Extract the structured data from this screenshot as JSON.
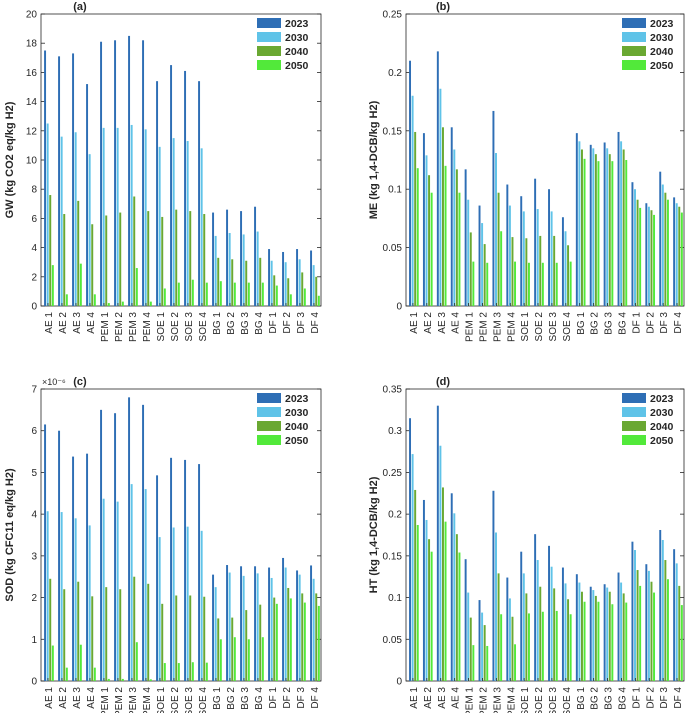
{
  "chart_data": [
    {
      "panel_label": "(a)",
      "type": "bar",
      "ylabel": "GW (kg CO2 eq/kg H2)",
      "xlabel": "",
      "ylim": [
        0,
        20
      ],
      "yticks": [
        "0",
        "2",
        "4",
        "6",
        "8",
        "10",
        "12",
        "14",
        "16",
        "18",
        "20"
      ],
      "exponent_label": "",
      "categories": [
        "AE 1",
        "AE 2",
        "AE 3",
        "AE 4",
        "PEM 1",
        "PEM 2",
        "PEM 3",
        "PEM 4",
        "SOE 1",
        "SOE 2",
        "SOE 3",
        "SOE 4",
        "BG 1",
        "BG 2",
        "BG 3",
        "BG 4",
        "DF 1",
        "DF 2",
        "DF 3",
        "DF 4"
      ],
      "series": [
        {
          "name": "2023",
          "color": "#2e6eb5",
          "values": [
            17.5,
            17.1,
            17.3,
            15.2,
            18.1,
            18.2,
            18.5,
            18.2,
            15.4,
            16.5,
            16.1,
            15.4,
            6.4,
            6.6,
            6.5,
            6.8,
            3.9,
            3.7,
            3.9,
            3.8
          ]
        },
        {
          "name": "2030",
          "color": "#5fc3e8",
          "values": [
            12.5,
            11.6,
            11.9,
            10.4,
            12.2,
            12.2,
            12.4,
            12.1,
            10.9,
            11.5,
            11.3,
            10.8,
            4.8,
            5.0,
            4.9,
            5.1,
            3.1,
            3.0,
            3.2,
            2.8
          ]
        },
        {
          "name": "2040",
          "color": "#6aa832",
          "values": [
            7.6,
            6.3,
            7.2,
            5.6,
            6.2,
            6.4,
            7.5,
            6.5,
            6.1,
            6.6,
            6.5,
            6.3,
            3.3,
            3.2,
            3.1,
            3.3,
            2.1,
            1.9,
            2.3,
            2.0
          ]
        },
        {
          "name": "2050",
          "color": "#52e93a",
          "values": [
            2.8,
            0.8,
            2.9,
            0.8,
            0.2,
            0.3,
            2.6,
            0.3,
            1.2,
            1.6,
            1.8,
            1.6,
            1.7,
            1.6,
            1.6,
            1.6,
            1.4,
            0.8,
            1.2,
            0.7
          ]
        }
      ]
    },
    {
      "panel_label": "(b)",
      "type": "bar",
      "ylabel": "ME (kg 1,4-DCB/kg H2)",
      "xlabel": "",
      "ylim": [
        0,
        0.25
      ],
      "yticks": [
        "0",
        "0.05",
        "0.1",
        "0.15",
        "0.2",
        "0.25"
      ],
      "exponent_label": "",
      "categories": [
        "AE 1",
        "AE 2",
        "AE 3",
        "AE 4",
        "PEM 1",
        "PEM 2",
        "PEM 3",
        "PEM 4",
        "SOE 1",
        "SOE 2",
        "SOE 3",
        "SOE 4",
        "BG 1",
        "BG 2",
        "BG 3",
        "BG 4",
        "DF 1",
        "DF 2",
        "DF 3",
        "DF 4"
      ],
      "series": [
        {
          "name": "2023",
          "color": "#2e6eb5",
          "values": [
            0.21,
            0.148,
            0.218,
            0.153,
            0.117,
            0.086,
            0.167,
            0.104,
            0.094,
            0.109,
            0.1,
            0.076,
            0.148,
            0.138,
            0.14,
            0.149,
            0.106,
            0.088,
            0.115,
            0.093
          ]
        },
        {
          "name": "2030",
          "color": "#5fc3e8",
          "values": [
            0.18,
            0.129,
            0.186,
            0.134,
            0.091,
            0.071,
            0.131,
            0.086,
            0.081,
            0.083,
            0.081,
            0.064,
            0.141,
            0.135,
            0.135,
            0.141,
            0.1,
            0.085,
            0.104,
            0.088
          ]
        },
        {
          "name": "2040",
          "color": "#6aa832",
          "values": [
            0.149,
            0.112,
            0.153,
            0.117,
            0.063,
            0.053,
            0.097,
            0.059,
            0.058,
            0.06,
            0.06,
            0.052,
            0.134,
            0.13,
            0.13,
            0.134,
            0.091,
            0.082,
            0.097,
            0.085
          ]
        },
        {
          "name": "2050",
          "color": "#52e93a",
          "values": [
            0.118,
            0.097,
            0.12,
            0.097,
            0.038,
            0.037,
            0.064,
            0.038,
            0.037,
            0.037,
            0.037,
            0.038,
            0.126,
            0.124,
            0.124,
            0.125,
            0.084,
            0.078,
            0.091,
            0.08
          ]
        }
      ]
    },
    {
      "panel_label": "(c)",
      "type": "bar",
      "ylabel": "SOD (kg CFC11 eq/kg H2)",
      "xlabel": "",
      "ylim": [
        0,
        7
      ],
      "yticks": [
        "0",
        "1",
        "2",
        "3",
        "4",
        "5",
        "6",
        "7"
      ],
      "exponent_label": "×10⁻⁶",
      "categories": [
        "AE 1",
        "AE 2",
        "AE 3",
        "AE 4",
        "PEM 1",
        "PEM 2",
        "PEM 3",
        "PEM 4",
        "SOE 1",
        "SOE 2",
        "SOE 3",
        "SOE 4",
        "BG 1",
        "BG 2",
        "BG 3",
        "BG 4",
        "DF 1",
        "DF 2",
        "DF 3",
        "DF 4"
      ],
      "series": [
        {
          "name": "2023",
          "color": "#2e6eb5",
          "values": [
            6.15,
            6.0,
            5.38,
            5.45,
            6.5,
            6.42,
            6.8,
            6.62,
            4.93,
            5.35,
            5.3,
            5.2,
            2.55,
            2.78,
            2.75,
            2.75,
            2.72,
            2.95,
            2.65,
            2.77
          ]
        },
        {
          "name": "2030",
          "color": "#5fc3e8",
          "values": [
            4.07,
            4.05,
            3.9,
            3.73,
            4.37,
            4.3,
            4.72,
            4.6,
            3.45,
            3.68,
            3.7,
            3.6,
            2.25,
            2.6,
            2.52,
            2.58,
            2.47,
            2.72,
            2.55,
            2.45
          ]
        },
        {
          "name": "2040",
          "color": "#6aa832",
          "values": [
            2.45,
            2.2,
            2.38,
            2.03,
            2.25,
            2.2,
            2.5,
            2.33,
            1.85,
            2.05,
            2.05,
            2.02,
            1.5,
            1.52,
            1.7,
            1.83,
            2.0,
            2.23,
            2.1,
            2.1
          ]
        },
        {
          "name": "2050",
          "color": "#52e93a",
          "values": [
            0.85,
            0.32,
            0.87,
            0.32,
            0.05,
            0.05,
            0.93,
            0.04,
            0.43,
            0.43,
            0.45,
            0.44,
            1.0,
            1.05,
            1.0,
            1.05,
            1.85,
            1.98,
            1.88,
            1.8
          ]
        }
      ]
    },
    {
      "panel_label": "(d)",
      "type": "bar",
      "ylabel": "HT (kg 1,4-DCB/kg H2)",
      "xlabel": "",
      "ylim": [
        0,
        0.35
      ],
      "yticks": [
        "0",
        "0.05",
        "0.1",
        "0.15",
        "0.2",
        "0.25",
        "0.3",
        "0.35"
      ],
      "exponent_label": "",
      "categories": [
        "AE 1",
        "AE 2",
        "AE 3",
        "AE 4",
        "PEM 1",
        "PEM 2",
        "PEM 3",
        "PEM 4",
        "SOE 1",
        "SOE 2",
        "SOE 3",
        "SOE 4",
        "BG 1",
        "BG 2",
        "BG 3",
        "BG 4",
        "DF 1",
        "DF 2",
        "DF 3",
        "DF 4"
      ],
      "series": [
        {
          "name": "2023",
          "color": "#2e6eb5",
          "values": [
            0.315,
            0.217,
            0.33,
            0.225,
            0.146,
            0.097,
            0.228,
            0.124,
            0.155,
            0.176,
            0.162,
            0.136,
            0.128,
            0.113,
            0.116,
            0.13,
            0.167,
            0.14,
            0.181,
            0.158
          ]
        },
        {
          "name": "2030",
          "color": "#5fc3e8",
          "values": [
            0.272,
            0.193,
            0.282,
            0.201,
            0.106,
            0.082,
            0.178,
            0.099,
            0.129,
            0.145,
            0.137,
            0.117,
            0.118,
            0.109,
            0.112,
            0.118,
            0.157,
            0.132,
            0.169,
            0.141
          ]
        },
        {
          "name": "2040",
          "color": "#6aa832",
          "values": [
            0.229,
            0.17,
            0.232,
            0.176,
            0.076,
            0.067,
            0.129,
            0.077,
            0.105,
            0.113,
            0.111,
            0.098,
            0.107,
            0.102,
            0.107,
            0.105,
            0.133,
            0.119,
            0.145,
            0.114
          ]
        },
        {
          "name": "2050",
          "color": "#52e93a",
          "values": [
            0.187,
            0.155,
            0.191,
            0.154,
            0.043,
            0.042,
            0.08,
            0.044,
            0.081,
            0.083,
            0.084,
            0.08,
            0.095,
            0.095,
            0.092,
            0.094,
            0.114,
            0.106,
            0.122,
            0.091
          ]
        }
      ]
    }
  ]
}
